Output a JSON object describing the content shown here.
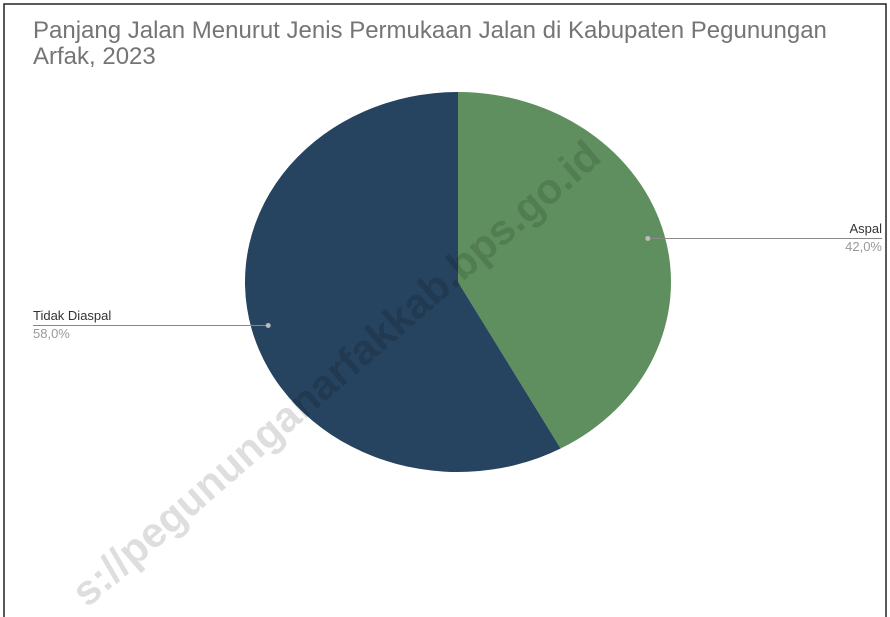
{
  "chart_data": {
    "type": "pie",
    "title": "Panjang Jalan Menurut Jenis Permukaan Jalan di  Kabupaten Pegunungan Arfak, 2023",
    "categories": [
      "Aspal",
      "Tidak Diaspal"
    ],
    "values": [
      42,
      58
    ],
    "value_labels": [
      "42,0%",
      "58,0%"
    ],
    "colors": [
      "#5f8f5e",
      "#26435f"
    ],
    "watermark": "s://pegununganarfakkab.bps.go.id"
  }
}
